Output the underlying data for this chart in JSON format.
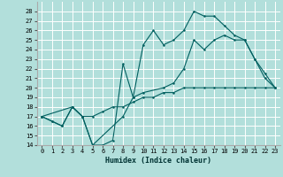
{
  "xlabel": "Humidex (Indice chaleur)",
  "bg_color": "#b2dfdb",
  "grid_color": "#ffffff",
  "line_color": "#005f5f",
  "xlim": [
    -0.5,
    23.5
  ],
  "ylim": [
    14,
    29
  ],
  "xticks": [
    0,
    1,
    2,
    3,
    4,
    5,
    6,
    7,
    8,
    9,
    10,
    11,
    12,
    13,
    14,
    15,
    16,
    17,
    18,
    19,
    20,
    21,
    22,
    23
  ],
  "yticks": [
    14,
    15,
    16,
    17,
    18,
    19,
    20,
    21,
    22,
    23,
    24,
    25,
    26,
    27,
    28
  ],
  "line1_x": [
    0,
    1,
    2,
    3,
    4,
    5,
    6,
    7,
    8,
    9,
    10,
    11,
    12,
    13,
    14,
    15,
    16,
    17,
    18,
    19,
    20,
    21,
    22,
    23
  ],
  "line1_y": [
    17,
    16.5,
    16,
    18,
    17,
    17,
    17.5,
    18,
    18,
    18.5,
    19,
    19,
    19.5,
    19.5,
    20,
    20,
    20,
    20,
    20,
    20,
    20,
    20,
    20,
    20
  ],
  "line2_x": [
    0,
    1,
    2,
    3,
    4,
    5,
    6,
    7,
    8,
    9,
    10,
    11,
    12,
    13,
    14,
    15,
    16,
    17,
    18,
    19,
    20,
    21,
    22,
    23
  ],
  "line2_y": [
    17,
    16.5,
    16,
    18,
    17,
    14,
    14,
    14.5,
    22.5,
    19,
    24.5,
    26,
    24.5,
    25,
    26,
    28,
    27.5,
    27.5,
    26.5,
    25.5,
    25,
    23,
    21.5,
    20
  ],
  "line3_x": [
    0,
    3,
    4,
    5,
    8,
    9,
    10,
    12,
    13,
    14,
    15,
    16,
    17,
    18,
    19,
    20,
    21,
    22,
    23
  ],
  "line3_y": [
    17,
    18,
    17,
    14,
    17,
    19,
    19.5,
    20,
    20.5,
    22,
    25,
    24,
    25,
    25.5,
    25,
    25,
    23,
    21,
    20
  ]
}
